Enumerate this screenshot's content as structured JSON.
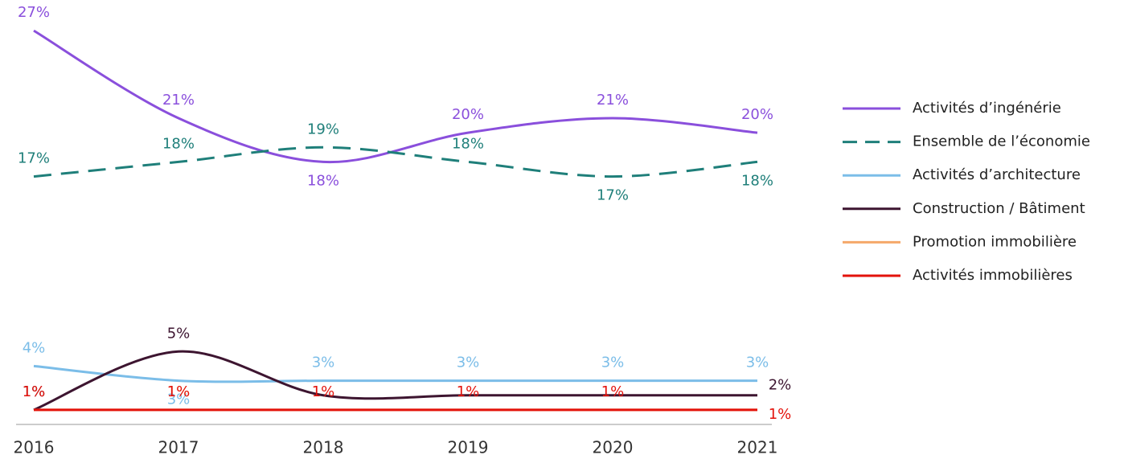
{
  "chart_data": {
    "type": "line",
    "categories": [
      "2016",
      "2017",
      "2018",
      "2019",
      "2020",
      "2021"
    ],
    "ylim": [
      0,
      28
    ],
    "series": [
      {
        "name": "Activités d’ingénérie",
        "color": "#8a4fdc",
        "dash": false,
        "values": [
          27,
          21,
          18,
          20,
          21,
          20
        ],
        "value_labels": [
          "27%",
          "21%",
          "18%",
          "20%",
          "21%",
          "20%"
        ]
      },
      {
        "name": "Ensemble de l’économie",
        "color": "#1f7f7a",
        "dash": true,
        "values": [
          17,
          18,
          19,
          18,
          17,
          18
        ],
        "value_labels": [
          "17%",
          "18%",
          "19%",
          "18%",
          "17%",
          "18%"
        ]
      },
      {
        "name": "Activités d’architecture",
        "color": "#7bbde8",
        "dash": false,
        "values": [
          4,
          3,
          3,
          3,
          3,
          3
        ],
        "value_labels": [
          "4%",
          "3%",
          "3%",
          "3%",
          "3%",
          "3%"
        ]
      },
      {
        "name": "Construction / Bâtiment",
        "color": "#3d1530",
        "dash": false,
        "values": [
          1,
          5,
          2,
          2,
          2,
          2
        ],
        "value_labels": [
          "1%",
          "5%",
          null,
          null,
          null,
          "2%"
        ]
      },
      {
        "name": "Promotion immobilière",
        "color": "#f5a86a",
        "dash": false,
        "values": [
          1,
          1,
          1,
          1,
          1,
          1
        ],
        "value_labels": [
          null,
          "1%",
          null,
          null,
          null,
          null
        ]
      },
      {
        "name": "Activités immobilières",
        "color": "#e3120b",
        "dash": false,
        "values": [
          1,
          1,
          1,
          1,
          1,
          1
        ],
        "value_labels": [
          "1%",
          "1%",
          "1%",
          "1%",
          "1%",
          "1%"
        ]
      }
    ]
  }
}
